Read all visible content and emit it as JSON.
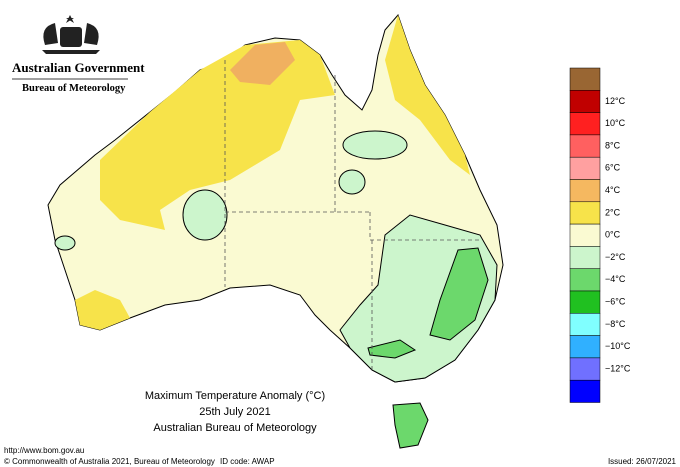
{
  "header": {
    "government": "Australian Government",
    "bureau": "Bureau of Meteorology"
  },
  "legend": {
    "labels": [
      "12°C",
      "10°C",
      "8°C",
      "6°C",
      "4°C",
      "2°C",
      "0°C",
      "−2°C",
      "−4°C",
      "−6°C",
      "−8°C",
      "−10°C",
      "−12°C"
    ]
  },
  "title": {
    "line1": "Maximum Temperature Anomaly (°C)",
    "line2": "25th July 2021",
    "line3": "Australian Bureau of Meteorology"
  },
  "footer": {
    "url": "http://www.bom.gov.au",
    "copyright": "© Commonwealth of Australia 2021, Bureau of Meteorology",
    "id_code": "ID code: AWAP",
    "issued": "Issued: 26/07/2021"
  }
}
